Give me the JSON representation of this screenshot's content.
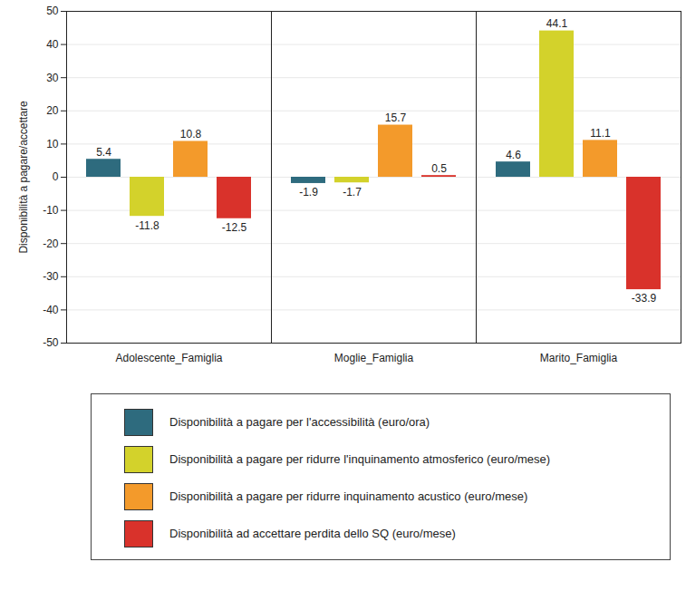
{
  "chart_data": {
    "type": "bar",
    "ylabel": "Disponibilità a pagare/accettare",
    "categories": [
      "Adolescente_Famiglia",
      "Moglie_Famiglia",
      "Marito_Famiglia"
    ],
    "series": [
      {
        "name": "Disponibilità a pagare per l'accessibilità (euro/ora)",
        "color": "#2e6b7e",
        "values": [
          5.4,
          -1.9,
          4.6
        ]
      },
      {
        "name": "Disponibilità a pagare per ridurre l'inquinamento atmosferico (euro/mese)",
        "color": "#d3d22b",
        "values": [
          -11.8,
          -1.7,
          44.1
        ]
      },
      {
        "name": "Disponibilità a pagare per ridurre inquinamento acustico (euro/mese)",
        "color": "#f39a2b",
        "values": [
          10.8,
          15.7,
          11.1
        ]
      },
      {
        "name": "Disponibilità ad accettare perdita dello SQ (euro/mese)",
        "color": "#d9322b",
        "values": [
          -12.5,
          0.5,
          -33.9
        ]
      }
    ],
    "ylim": [
      -50,
      50
    ],
    "yticks": [
      -50,
      -40,
      -30,
      -20,
      -10,
      0,
      10,
      20,
      30,
      40,
      50
    ],
    "grid": true,
    "legend": "bottom",
    "data_labels": true
  }
}
